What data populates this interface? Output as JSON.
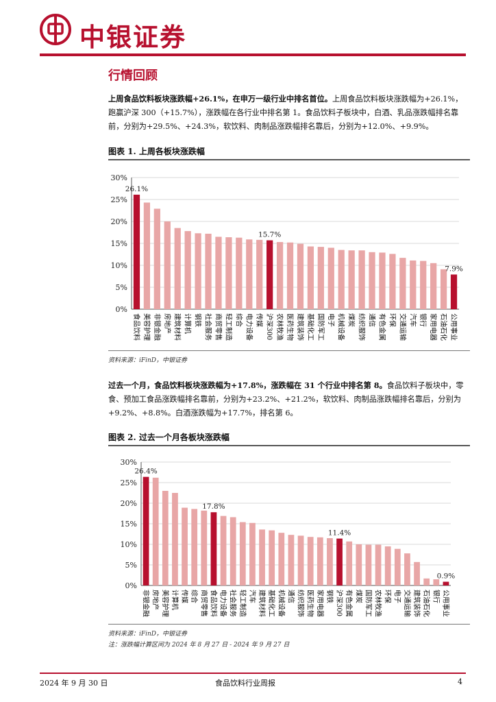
{
  "header": {
    "brand": "中银证券"
  },
  "section_title": "行情回顾",
  "para1": {
    "bold": "上周食品饮料板块涨跌幅+26.1%，在申万一级行业中排名首位。",
    "text": "上周食品饮料板块涨跌幅为+26.1%，跑赢沪深 300（+15.7%），涨跌幅在各行业中排名第 1。食品饮料子板块中，白酒、乳品涨跌幅排名靠前，分别为+29.5%、+24.3%，软饮料、肉制品涨跌幅排名靠后，分别为+12.0%、+9.9%。"
  },
  "para2": {
    "bold": "过去一个月，食品饮料板块涨跌幅为+17.8%，涨跌幅在 31 个行业中排名第 8。",
    "text": "食品饮料子板块中，零食、预加工食品涨跌幅排名靠前，分别为+23.2%、+21.2%，软饮料、肉制品涨跌幅排名靠后，分别为+9.2%、+8.8%。白酒涨跌幅为+17.7%，排名第 6。"
  },
  "figure1": {
    "title": "图表 1. 上周各板块涨跌幅",
    "source": "资料来源：iFinD，中银证券"
  },
  "figure2": {
    "title": "图表 2. 过去一个月各板块涨跌幅",
    "source": "资料来源：iFinD，中银证券",
    "note": "注：涨跌幅计算区间为 2024 年 8 月 27 日 - 2024 年 9 月 27 日"
  },
  "chart_data": [
    {
      "type": "bar",
      "categories": [
        "食品饮料",
        "美容护理",
        "非银金融",
        "房地产",
        "建筑材料",
        "计算机",
        "钢铁",
        "社会服务",
        "商贸零售",
        "轻工制造",
        "综合",
        "电力设备",
        "传媒",
        "沪深300",
        "农林牧渔",
        "医药生物",
        "建筑装饰",
        "基础化工",
        "国防军工",
        "电子",
        "机械设备",
        "煤炭",
        "纺织服饰",
        "通信",
        "有色金属",
        "环保",
        "交通运输",
        "汽车",
        "银行",
        "家用电器",
        "石油石化",
        "公用事业"
      ],
      "values": [
        26.1,
        24.3,
        22.9,
        20.0,
        18.5,
        17.8,
        17.3,
        17.2,
        16.5,
        16.4,
        16.3,
        15.9,
        15.8,
        15.7,
        15.3,
        15.2,
        14.9,
        14.3,
        14.2,
        14.0,
        13.5,
        13.4,
        13.4,
        13.0,
        12.9,
        12.6,
        11.7,
        11.1,
        11.0,
        10.5,
        9.1,
        7.9
      ],
      "data_labels": {
        "0": "26.1%",
        "13": "15.7%",
        "31": "7.9%"
      },
      "highlight": [
        0,
        13,
        31
      ],
      "ylim": [
        0,
        30
      ],
      "yticks": [
        "0%",
        "5%",
        "10%",
        "15%",
        "20%",
        "25%",
        "30%"
      ],
      "grid": true,
      "colors": {
        "highlight": "#b7102e",
        "normal": "#e8a6a6",
        "grid": "#d9d9d9"
      }
    },
    {
      "type": "bar",
      "categories": [
        "非银金融",
        "房地产",
        "美容护理",
        "计算机",
        "传媒",
        "综合",
        "商贸零售",
        "食品饮料",
        "电力设备",
        "社会服务",
        "轻工制造",
        "汽车",
        "建筑材料",
        "基础化工",
        "机械设备",
        "通信",
        "纺织服饰",
        "医药生物",
        "家用电器",
        "钢铁",
        "沪深300",
        "有色金属",
        "煤炭",
        "国防军工",
        "农林牧渔",
        "环保",
        "电子",
        "交通运输",
        "建筑装饰",
        "石油石化",
        "银行",
        "公用事业"
      ],
      "values": [
        26.4,
        26.2,
        23.0,
        22.5,
        18.9,
        18.6,
        18.2,
        17.8,
        16.9,
        16.6,
        15.4,
        15.2,
        13.6,
        13.4,
        12.8,
        12.3,
        12.1,
        11.8,
        11.7,
        11.5,
        11.4,
        10.7,
        10.0,
        9.9,
        9.9,
        9.5,
        8.9,
        7.8,
        5.7,
        1.7,
        1.5,
        0.9
      ],
      "data_labels": {
        "0": "26.4%",
        "7": "17.8%",
        "20": "11.4%",
        "31": "0.9%"
      },
      "highlight": [
        0,
        7,
        20,
        31
      ],
      "ylim": [
        0,
        30
      ],
      "yticks": [
        "0%",
        "5%",
        "10%",
        "15%",
        "20%",
        "25%",
        "30%"
      ],
      "grid": true,
      "colors": {
        "highlight": "#b7102e",
        "normal": "#e8a6a6",
        "grid": "#d9d9d9"
      }
    }
  ],
  "footer": {
    "date": "2024 年 9 月 30 日",
    "title": "食品饮料行业周报",
    "page": "4"
  }
}
